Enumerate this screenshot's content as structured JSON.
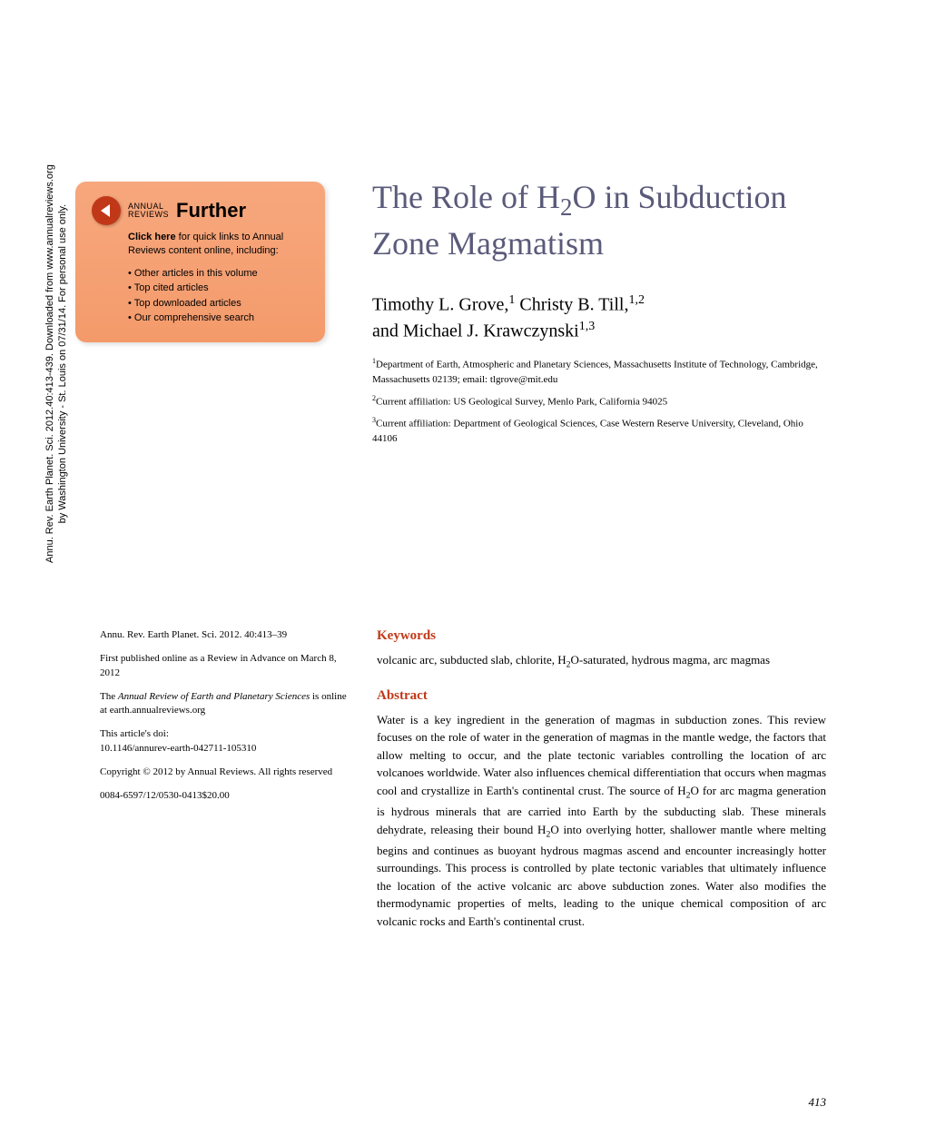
{
  "sidebar": {
    "line1": "Annu. Rev. Earth Planet. Sci. 2012.40:413-439. Downloaded from www.annualreviews.org",
    "line2": "by Washington University - St. Louis on 07/31/14. For personal use only."
  },
  "further_box": {
    "ar_top": "ANNUAL",
    "ar_bottom": "REVIEWS",
    "further": "Further",
    "click_prefix": "Click here",
    "click_text": " for quick links to Annual Reviews content online, including:",
    "items": [
      "Other articles in this volume",
      "Top cited articles",
      "Top downloaded articles",
      "Our comprehensive search"
    ]
  },
  "title": {
    "line1": "The Role of H",
    "sub1": "2",
    "line2": "O in Subduction Zone Magmatism"
  },
  "authors": {
    "a1": "Timothy L. Grove,",
    "s1": "1",
    "a2": " Christy B. Till,",
    "s2": "1,2",
    "a3": "and Michael J. Krawczynski",
    "s3": "1,3"
  },
  "affiliations": [
    {
      "sup": "1",
      "text": "Department of Earth, Atmospheric and Planetary Sciences, Massachusetts Institute of Technology, Cambridge, Massachusetts 02139; email: tlgrove@mit.edu"
    },
    {
      "sup": "2",
      "text": "Current affiliation: US Geological Survey, Menlo Park, California 94025"
    },
    {
      "sup": "3",
      "text": "Current affiliation: Department of Geological Sciences, Case Western Reserve University, Cleveland, Ohio 44106"
    }
  ],
  "left_col": {
    "citation": "Annu. Rev. Earth Planet. Sci. 2012. 40:413–39",
    "first_pub": "First published online as a Review in Advance on March 8, 2012",
    "journal_line": "The Annual Review of Earth and Planetary Sciences is online at earth.annualreviews.org",
    "doi_label": "This article's doi:",
    "doi": "10.1146/annurev-earth-042711-105310",
    "copyright": "Copyright © 2012 by Annual Reviews. All rights reserved",
    "issn": "0084-6597/12/0530-0413$20.00"
  },
  "keywords": {
    "heading": "Keywords",
    "text_p1": "volcanic arc, subducted slab, chlorite, H",
    "sub": "2",
    "text_p2": "O-saturated, hydrous magma, arc magmas"
  },
  "abstract": {
    "heading": "Abstract",
    "p1": "Water is a key ingredient in the generation of magmas in subduction zones. This review focuses on the role of water in the generation of magmas in the mantle wedge, the factors that allow melting to occur, and the plate tectonic variables controlling the location of arc volcanoes worldwide. Water also influences chemical differentiation that occurs when magmas cool and crystallize in Earth's continental crust. The source of H",
    "sub1": "2",
    "p2": "O for arc magma generation is hydrous minerals that are carried into Earth by the subducting slab. These minerals dehydrate, releasing their bound H",
    "sub2": "2",
    "p3": "O into overlying hotter, shallower mantle where melting begins and continues as buoyant hydrous magmas ascend and encounter increasingly hotter surroundings. This process is controlled by plate tectonic variables that ultimately influence the location of the active volcanic arc above subduction zones. Water also modifies the thermodynamic properties of melts, leading to the unique chemical composition of arc volcanic rocks and Earth's continental crust."
  },
  "page_number": "413",
  "colors": {
    "heading_color": "#c13818",
    "title_color": "#5a5a7a",
    "further_bg_top": "#f7a77d",
    "further_bg_bottom": "#f49a6a",
    "play_bg": "#c13818"
  }
}
